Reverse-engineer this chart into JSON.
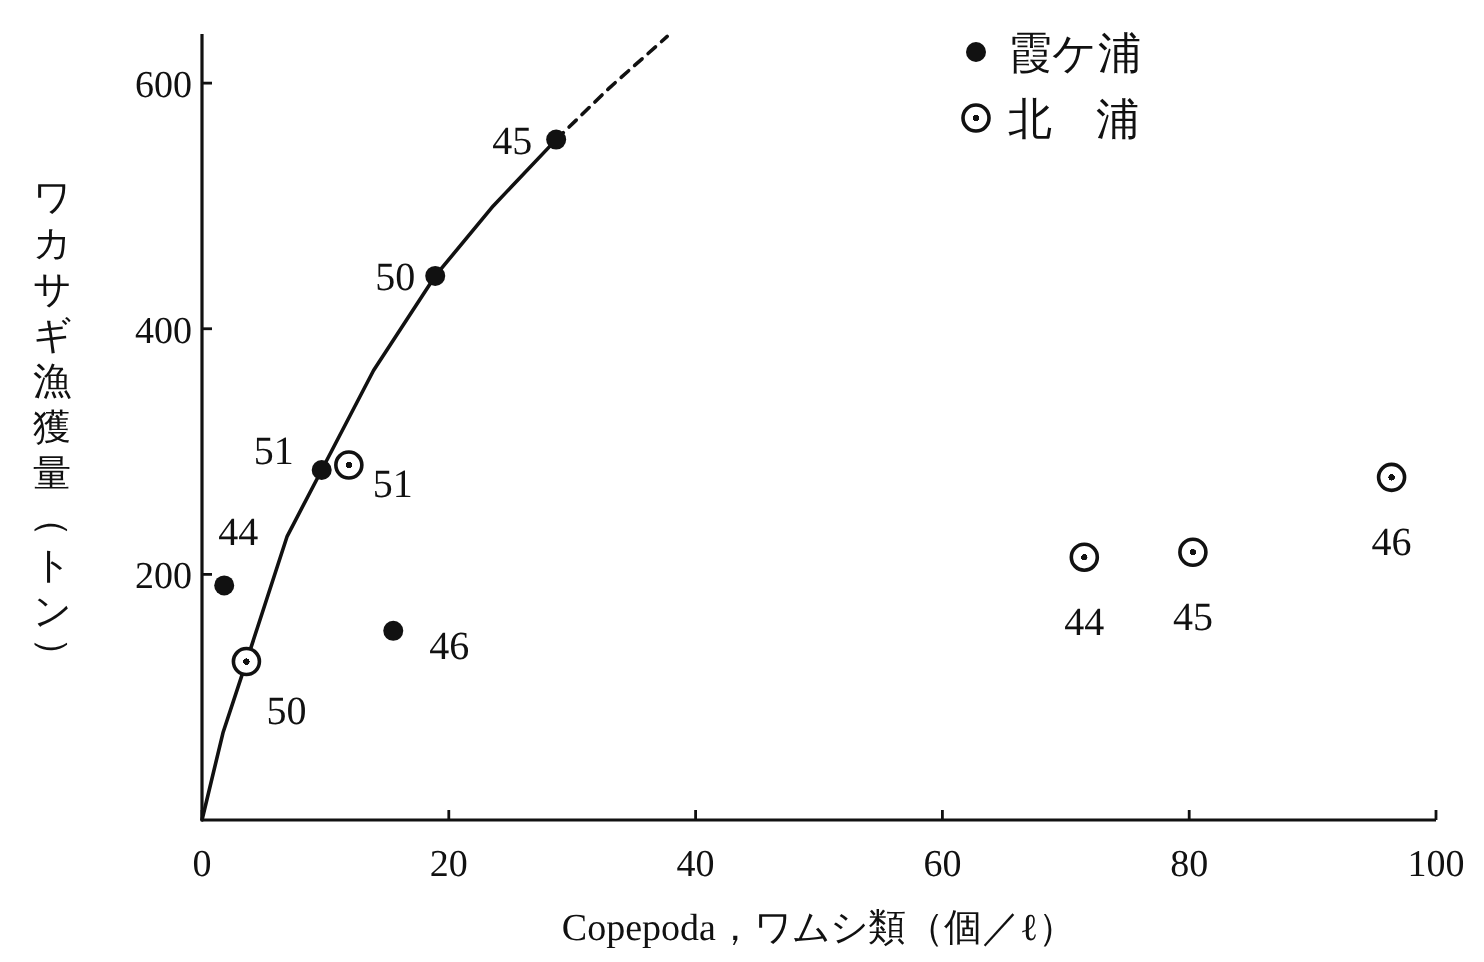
{
  "chart_data": {
    "type": "scatter",
    "xlabel": "Copepoda，ワムシ類（個／ℓ）",
    "ylabel": "ワカサギ漁獲量（トン）",
    "xlim": [
      0,
      100
    ],
    "xticks": [
      0,
      20,
      40,
      60,
      80,
      100
    ],
    "ylim": [
      0,
      640
    ],
    "yticks": [
      200,
      400,
      600
    ],
    "grid": false,
    "legend": "top",
    "marker": "circle",
    "series": [
      {
        "name": "霞ケ浦",
        "color": "#111111",
        "x": [
          1.8,
          28.7,
          15.5,
          18.9,
          9.7
        ],
        "values": [
          191,
          554,
          154,
          443,
          285
        ]
      },
      {
        "name": "北　浦",
        "color": "#111111",
        "x": [
          71.5,
          80.3,
          96.4,
          3.6,
          11.9
        ],
        "values": [
          214,
          218,
          279,
          129,
          289
        ]
      },
      {
        "type": "line",
        "color": "#111111",
        "line_style": "solid",
        "marker": "none",
        "x": [
          0,
          1.7,
          3.6,
          6.9,
          9.7,
          13.9,
          18.9,
          23.6,
          28.7
        ],
        "values": [
          0,
          71,
          129,
          231,
          285,
          366,
          443,
          500,
          554
        ]
      },
      {
        "type": "line",
        "color": "#111111",
        "line_style": "dashed",
        "marker": "none",
        "x": [
          28.7,
          33.0,
          37.7
        ],
        "values": [
          554,
          596,
          638
        ]
      }
    ],
    "annotations": [
      {
        "text": "44",
        "x": 1.8,
        "y": 191
      },
      {
        "text": "45",
        "x": 28.7,
        "y": 554
      },
      {
        "text": "46",
        "x": 15.5,
        "y": 154
      },
      {
        "text": "50",
        "x": 18.9,
        "y": 443
      },
      {
        "text": "51",
        "x": 9.7,
        "y": 285
      },
      {
        "text": "44",
        "x": 71.5,
        "y": 214
      },
      {
        "text": "45",
        "x": 80.3,
        "y": 218
      },
      {
        "text": "46",
        "x": 96.4,
        "y": 279
      },
      {
        "text": "50",
        "x": 3.6,
        "y": 129
      },
      {
        "text": "51",
        "x": 11.9,
        "y": 289
      }
    ]
  }
}
